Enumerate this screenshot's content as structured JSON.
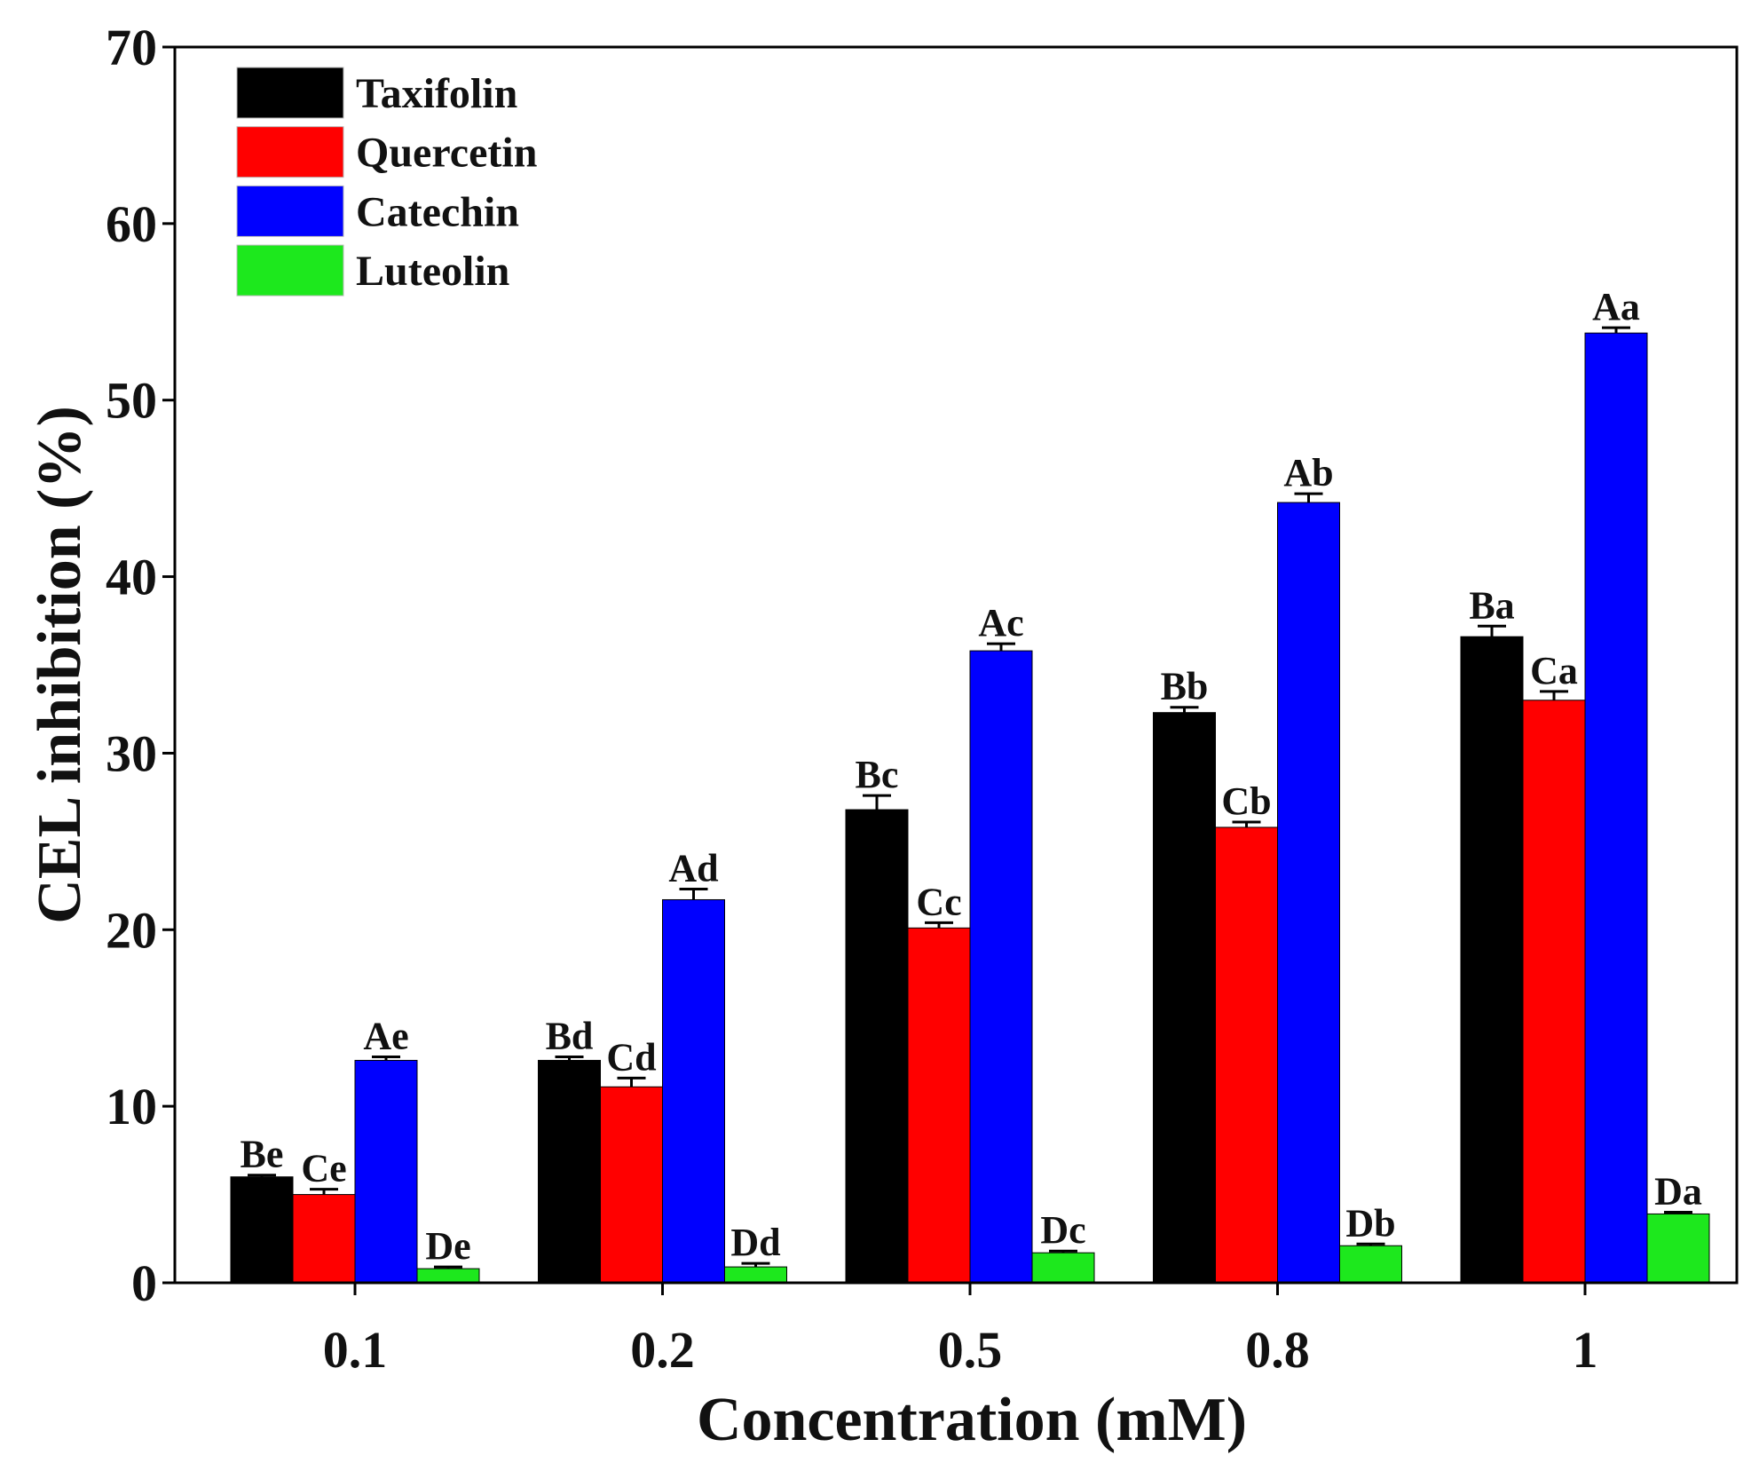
{
  "chart_data": {
    "type": "bar",
    "xlabel": "Concentration (mM)",
    "ylabel": "CEL inhibition (%)",
    "ylim": [
      0,
      70
    ],
    "yticks": [
      0,
      10,
      20,
      30,
      40,
      50,
      60,
      70
    ],
    "categories": [
      "0.1",
      "0.2",
      "0.5",
      "0.8",
      "1"
    ],
    "legend_position": "top-left",
    "series": [
      {
        "name": "Taxifolin",
        "color": "#000000",
        "values": [
          6.0,
          12.6,
          26.8,
          32.3,
          36.6
        ],
        "errors": [
          0.1,
          0.2,
          0.8,
          0.3,
          0.6
        ],
        "labels": [
          "Be",
          "Bd",
          "Bc",
          "Bb",
          "Ba"
        ]
      },
      {
        "name": "Quercetin",
        "color": "#ff0000",
        "values": [
          5.0,
          11.1,
          20.1,
          25.8,
          33.0
        ],
        "errors": [
          0.3,
          0.5,
          0.3,
          0.3,
          0.5
        ],
        "labels": [
          "Ce",
          "Cd",
          "Cc",
          "Cb",
          "Ca"
        ]
      },
      {
        "name": "Catechin",
        "color": "#0000ff",
        "values": [
          12.6,
          21.7,
          35.8,
          44.2,
          53.8
        ],
        "errors": [
          0.2,
          0.6,
          0.4,
          0.5,
          0.3
        ],
        "labels": [
          "Ae",
          "Ad",
          "Ac",
          "Ab",
          "Aa"
        ]
      },
      {
        "name": "Luteolin",
        "color": "#1de81d",
        "values": [
          0.8,
          0.9,
          1.7,
          2.1,
          3.9
        ],
        "errors": [
          0.1,
          0.2,
          0.1,
          0.1,
          0.1
        ],
        "labels": [
          "De",
          "Dd",
          "Dc",
          "Db",
          "Da"
        ]
      }
    ]
  }
}
